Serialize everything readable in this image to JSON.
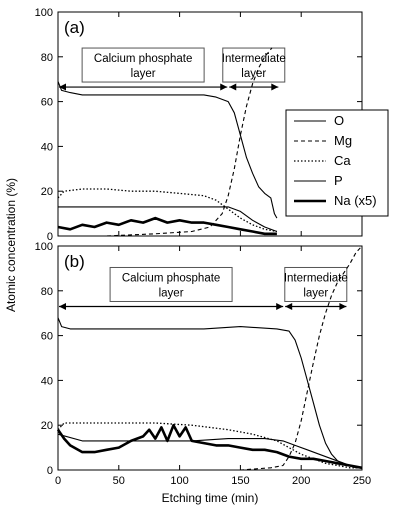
{
  "chart_data": [
    {
      "panel": "(a)",
      "type": "line",
      "xlabel": "",
      "ylabel": "Atomic concentration (%)",
      "xlim": [
        0,
        250
      ],
      "ylim": [
        0,
        100
      ],
      "yticks": [
        0,
        20,
        40,
        60,
        80,
        100
      ],
      "annotations": [
        {
          "text": [
            "Calcium phosphate",
            "layer"
          ],
          "span": [
            0,
            140
          ]
        },
        {
          "text": [
            "Intermediate",
            "layer"
          ],
          "span": [
            140,
            182
          ]
        }
      ],
      "legend": [
        "O",
        "Mg",
        "Ca",
        "P",
        "Na (x5)"
      ],
      "series": [
        {
          "name": "O",
          "style": "solid-thin",
          "x": [
            0,
            3,
            10,
            20,
            40,
            60,
            80,
            100,
            120,
            130,
            140,
            145,
            150,
            155,
            160,
            165,
            170,
            175,
            178,
            180
          ],
          "values": [
            69,
            65,
            64,
            63,
            63,
            63,
            63,
            63,
            63,
            62,
            60,
            55,
            45,
            35,
            28,
            22,
            19,
            17,
            10,
            8
          ]
        },
        {
          "name": "Mg",
          "style": "dashed",
          "x": [
            0,
            40,
            80,
            110,
            125,
            135,
            140,
            145,
            150,
            155,
            160,
            165,
            170,
            173,
            176
          ],
          "values": [
            0,
            0,
            1,
            2,
            4,
            10,
            18,
            30,
            45,
            58,
            68,
            75,
            80,
            82,
            84
          ]
        },
        {
          "name": "Ca",
          "style": "dotted",
          "x": [
            0,
            5,
            20,
            40,
            60,
            80,
            100,
            120,
            130,
            140,
            150,
            160,
            170,
            180
          ],
          "values": [
            17,
            20,
            21,
            21,
            20,
            20,
            19,
            18,
            16,
            12,
            8,
            5,
            3,
            2
          ]
        },
        {
          "name": "P",
          "style": "solid-thin",
          "x": [
            0,
            20,
            40,
            60,
            80,
            100,
            120,
            140,
            150,
            160,
            170,
            180
          ],
          "values": [
            13,
            13,
            13,
            13,
            13,
            13,
            13,
            13,
            11,
            7,
            4,
            2
          ]
        },
        {
          "name": "Na (x5)",
          "style": "solid-thick",
          "x": [
            0,
            10,
            20,
            30,
            40,
            50,
            60,
            70,
            80,
            90,
            100,
            110,
            120,
            130,
            140,
            150,
            160,
            170,
            180
          ],
          "values": [
            4,
            3,
            5,
            4,
            6,
            5,
            7,
            6,
            8,
            6,
            7,
            6,
            6,
            5,
            4,
            3,
            2,
            1,
            1
          ]
        }
      ]
    },
    {
      "panel": "(b)",
      "type": "line",
      "xlabel": "Etching time (min)",
      "ylabel": "Atomic concentration (%)",
      "xlim": [
        0,
        250
      ],
      "ylim": [
        0,
        100
      ],
      "xticks": [
        0,
        50,
        100,
        150,
        200,
        250
      ],
      "yticks": [
        0,
        20,
        40,
        60,
        80,
        100
      ],
      "annotations": [
        {
          "text": [
            "Calcium phosphate",
            "layer"
          ],
          "span": [
            0,
            186
          ]
        },
        {
          "text": [
            "Intermediate",
            "layer"
          ],
          "span": [
            186,
            238
          ]
        }
      ],
      "series": [
        {
          "name": "O",
          "style": "solid-thin",
          "x": [
            0,
            3,
            10,
            30,
            60,
            90,
            120,
            150,
            180,
            190,
            195,
            200,
            205,
            210,
            215,
            220,
            225,
            230,
            240,
            250
          ],
          "values": [
            68,
            64,
            63,
            63,
            63,
            63,
            63,
            64,
            63,
            62,
            58,
            50,
            40,
            30,
            20,
            12,
            7,
            4,
            2,
            1
          ]
        },
        {
          "name": "Mg",
          "style": "dashed",
          "x": [
            0,
            50,
            100,
            150,
            175,
            185,
            190,
            195,
            200,
            205,
            210,
            215,
            220,
            225,
            230,
            235,
            240,
            245,
            250
          ],
          "values": [
            0,
            0,
            0,
            0,
            1,
            2,
            6,
            12,
            22,
            35,
            48,
            60,
            70,
            78,
            84,
            88,
            92,
            97,
            100
          ]
        },
        {
          "name": "Ca",
          "style": "dotted",
          "x": [
            0,
            5,
            20,
            50,
            80,
            110,
            140,
            160,
            180,
            190,
            200,
            210,
            220,
            230,
            240,
            250
          ],
          "values": [
            18,
            21,
            21,
            21,
            21,
            20,
            18,
            16,
            13,
            10,
            7,
            5,
            3,
            2,
            1,
            1
          ]
        },
        {
          "name": "P",
          "style": "solid-thin",
          "x": [
            0,
            20,
            50,
            80,
            110,
            140,
            170,
            185,
            195,
            205,
            215,
            225,
            235,
            245,
            250
          ],
          "values": [
            16,
            13,
            13,
            13,
            13,
            14,
            14,
            13,
            11,
            9,
            7,
            5,
            3,
            1,
            1
          ]
        },
        {
          "name": "Na (x5)",
          "style": "solid-thick",
          "x": [
            0,
            5,
            10,
            20,
            30,
            40,
            50,
            60,
            70,
            75,
            80,
            85,
            90,
            95,
            100,
            105,
            110,
            120,
            130,
            140,
            150,
            160,
            170,
            180,
            190,
            200,
            210,
            220,
            230,
            240,
            250
          ],
          "values": [
            18,
            14,
            11,
            8,
            8,
            9,
            10,
            13,
            15,
            18,
            14,
            19,
            13,
            20,
            15,
            19,
            13,
            12,
            11,
            11,
            10,
            9,
            9,
            8,
            6,
            5,
            5,
            4,
            3,
            2,
            1
          ]
        }
      ]
    }
  ]
}
